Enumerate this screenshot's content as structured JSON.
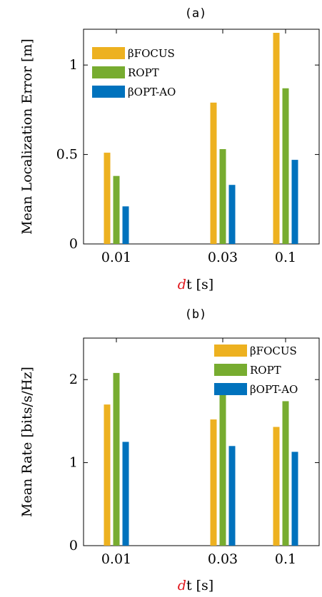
{
  "colors": {
    "series": [
      "#EDB120",
      "#77AC30",
      "#0072BD"
    ],
    "xlabel_highlight": "#E0151B"
  },
  "chart_data": [
    {
      "type": "bar",
      "title": "(a)",
      "categories": [
        "0.01",
        "0.03",
        "0.1"
      ],
      "xlabel_parts": {
        "highlight": "d",
        "rest": "t [s]"
      },
      "xlabel": "dt [s]",
      "ylabel": "Mean Localization Error [m]",
      "ylim": [
        0,
        1.2
      ],
      "yticks": [
        0,
        0.5,
        1
      ],
      "ytick_labels": [
        "0",
        "0.5",
        "1"
      ],
      "legend_position": "top-left",
      "series": [
        {
          "name": "βFOCUS",
          "values": [
            0.51,
            0.79,
            1.18
          ]
        },
        {
          "name": "ROPT",
          "values": [
            0.38,
            0.53,
            0.87
          ]
        },
        {
          "name": "βOPT-AO",
          "values": [
            0.21,
            0.33,
            0.47
          ]
        }
      ]
    },
    {
      "type": "bar",
      "title": "(b)",
      "categories": [
        "0.01",
        "0.03",
        "0.1"
      ],
      "xlabel_parts": {
        "highlight": "d",
        "rest": "t [s]"
      },
      "xlabel": "dt [s]",
      "ylabel": "Mean Rate [bits/s/Hz]",
      "ylim": [
        0,
        2.5
      ],
      "yticks": [
        0,
        1,
        2
      ],
      "ytick_labels": [
        "0",
        "1",
        "2"
      ],
      "legend_position": "top-right",
      "series": [
        {
          "name": "βFOCUS",
          "values": [
            1.7,
            1.52,
            1.43
          ]
        },
        {
          "name": "ROPT",
          "values": [
            2.08,
            1.88,
            1.74
          ]
        },
        {
          "name": "βOPT-AO",
          "values": [
            1.25,
            1.2,
            1.13
          ]
        }
      ]
    }
  ]
}
